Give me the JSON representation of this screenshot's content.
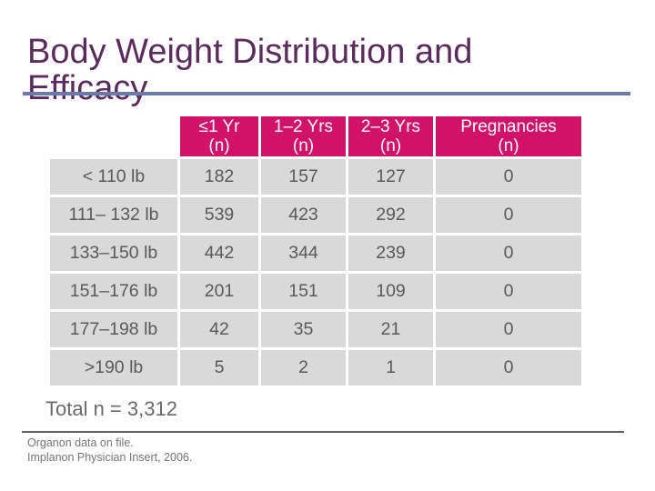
{
  "slide": {
    "title": "Body Weight Distribution and Efficacy",
    "total_label": "Total n = 3,312",
    "footnotes": {
      "line1": "Organon data on file.",
      "line2": "Implanon Physician Insert, 2006."
    }
  },
  "table": {
    "headers": [
      {
        "title": "≤1 Yr",
        "unit": "(n)"
      },
      {
        "title": "1–2 Yrs",
        "unit": "(n)"
      },
      {
        "title": "2–3 Yrs",
        "unit": "(n)"
      },
      {
        "title": "Pregnancies",
        "unit": "(n)"
      }
    ],
    "rows": [
      {
        "label": "< 110 lb",
        "values": [
          "182",
          "157",
          "127",
          "0"
        ]
      },
      {
        "label": "111– 132 lb",
        "values": [
          "539",
          "423",
          "292",
          "0"
        ]
      },
      {
        "label": "133–150 lb",
        "values": [
          "442",
          "344",
          "239",
          "0"
        ]
      },
      {
        "label": "151–176 lb",
        "values": [
          "201",
          "151",
          "109",
          "0"
        ]
      },
      {
        "label": "177–198 lb",
        "values": [
          "42",
          "35",
          "21",
          "0"
        ]
      },
      {
        "label": ">190 lb",
        "values": [
          "5",
          "2",
          "1",
          "0"
        ]
      }
    ]
  },
  "colors": {
    "title_text": "#5c2a5e",
    "title_underline": "#6b79af",
    "header_background": "#d2116b",
    "header_text": "#ffffff",
    "cell_background": "#d9d9d9",
    "cell_text": "#595959",
    "footnote_separator": "#5f5f6a",
    "footnote_text": "#757575"
  }
}
